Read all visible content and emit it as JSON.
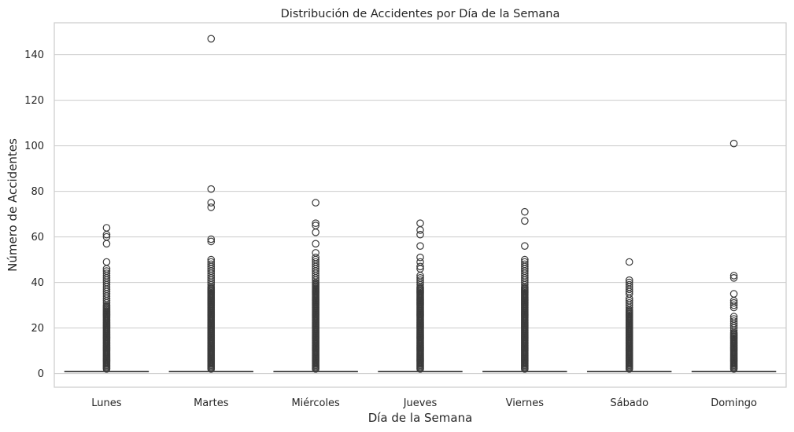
{
  "chart_data": {
    "type": "box",
    "title": "Distribución de Accidentes por Día de la Semana",
    "xlabel": "Día de la Semana",
    "ylabel": "Número de Accidentes",
    "categories": [
      "Lunes",
      "Martes",
      "Miércoles",
      "Jueves",
      "Viernes",
      "Sábado",
      "Domingo"
    ],
    "yticks": [
      0,
      20,
      40,
      60,
      80,
      100,
      120,
      140
    ],
    "ylim": [
      -6,
      154
    ],
    "grid": true,
    "legend": "none",
    "boxes": [
      {
        "category": "Lunes",
        "q1": 1,
        "median": 1,
        "q3": 1,
        "whisker_low": 1,
        "whisker_high": 1,
        "dense_outliers_range": [
          2,
          30
        ],
        "outliers": [
          31,
          32,
          33,
          34,
          35,
          36,
          37,
          38,
          39,
          40,
          41,
          42,
          43,
          44,
          45,
          46,
          49,
          57,
          60,
          61,
          64
        ]
      },
      {
        "category": "Martes",
        "q1": 1,
        "median": 1,
        "q3": 1,
        "whisker_low": 1,
        "whisker_high": 1,
        "dense_outliers_range": [
          2,
          38
        ],
        "outliers": [
          39,
          40,
          41,
          42,
          43,
          44,
          45,
          46,
          47,
          48,
          49,
          50,
          58,
          59,
          73,
          75,
          81,
          147
        ]
      },
      {
        "category": "Miércoles",
        "q1": 1,
        "median": 1,
        "q3": 1,
        "whisker_low": 1,
        "whisker_high": 1,
        "dense_outliers_range": [
          2,
          40
        ],
        "outliers": [
          41,
          42,
          43,
          44,
          45,
          46,
          47,
          48,
          49,
          50,
          51,
          53,
          57,
          62,
          65,
          66,
          75
        ]
      },
      {
        "category": "Jueves",
        "q1": 1,
        "median": 1,
        "q3": 1,
        "whisker_low": 1,
        "whisker_high": 1,
        "dense_outliers_range": [
          2,
          38
        ],
        "outliers": [
          39,
          40,
          41,
          42,
          43,
          46,
          47,
          49,
          51,
          56,
          61,
          63,
          66
        ]
      },
      {
        "category": "Viernes",
        "q1": 1,
        "median": 1,
        "q3": 1,
        "whisker_low": 1,
        "whisker_high": 1,
        "dense_outliers_range": [
          2,
          38
        ],
        "outliers": [
          39,
          40,
          41,
          42,
          43,
          44,
          45,
          46,
          47,
          48,
          49,
          50,
          56,
          67,
          71
        ]
      },
      {
        "category": "Sábado",
        "q1": 1,
        "median": 1,
        "q3": 1,
        "whisker_low": 1,
        "whisker_high": 1,
        "dense_outliers_range": [
          2,
          28
        ],
        "outliers": [
          29,
          30,
          31,
          32,
          33,
          35,
          36,
          37,
          38,
          39,
          40,
          41,
          49
        ]
      },
      {
        "category": "Domingo",
        "q1": 1,
        "median": 1,
        "q3": 1,
        "whisker_low": 1,
        "whisker_high": 1,
        "dense_outliers_range": [
          2,
          18
        ],
        "outliers": [
          19,
          20,
          21,
          22,
          23,
          24,
          25,
          29,
          30,
          31,
          32,
          35,
          42,
          43,
          101
        ]
      }
    ],
    "colors": {
      "box": "#3b3b3b",
      "grid": "#cccccc",
      "frame": "#cccccc",
      "text": "#262626"
    }
  }
}
